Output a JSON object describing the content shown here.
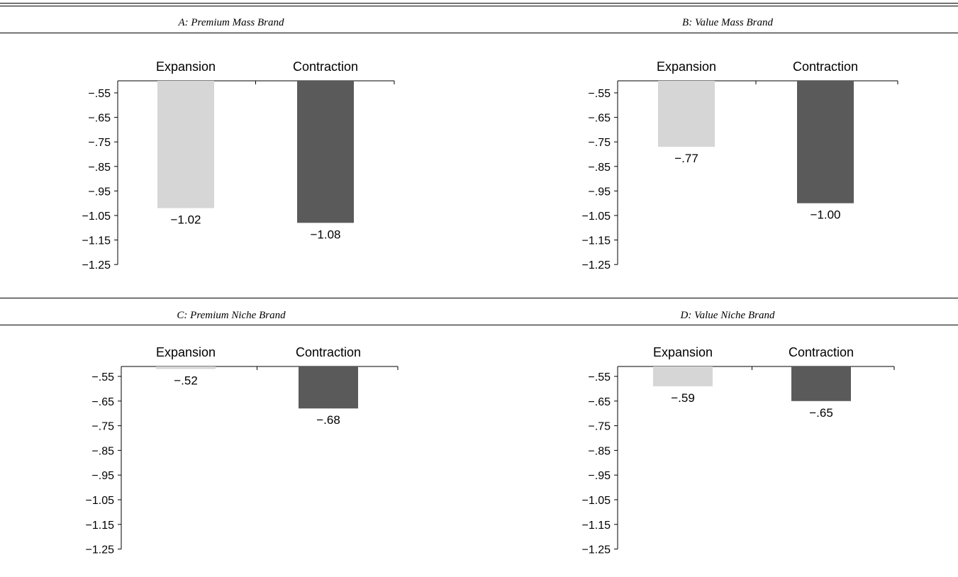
{
  "chart_data": [
    {
      "type": "bar",
      "title": "A: Premium Mass Brand",
      "categories": [
        "Expansion",
        "Contraction"
      ],
      "values": [
        -1.02,
        -1.08
      ],
      "value_labels": [
        "−1.02",
        "−1.08"
      ],
      "colors": [
        "#d6d6d6",
        "#5a5a5a"
      ],
      "yticks": [
        "−.55",
        "−.65",
        "−.75",
        "−.85",
        "−.95",
        "−1.05",
        "−1.15",
        "−1.25"
      ],
      "ylim": [
        -0.52,
        -1.25
      ],
      "category_axis": "top",
      "grid": false
    },
    {
      "type": "bar",
      "title": "B: Value Mass Brand",
      "categories": [
        "Expansion",
        "Contraction"
      ],
      "values": [
        -0.77,
        -1.0
      ],
      "value_labels": [
        "−.77",
        "−1.00"
      ],
      "colors": [
        "#d6d6d6",
        "#5a5a5a"
      ],
      "yticks": [
        "−.55",
        "−.65",
        "−.75",
        "−.85",
        "−.95",
        "−1.05",
        "−1.15",
        "−1.25"
      ],
      "ylim": [
        -0.52,
        -1.25
      ],
      "category_axis": "top",
      "grid": false
    },
    {
      "type": "bar",
      "title": "C: Premium Niche Brand",
      "categories": [
        "Expansion",
        "Contraction"
      ],
      "values": [
        -0.52,
        -0.68
      ],
      "value_labels": [
        "−.52",
        "−.68"
      ],
      "colors": [
        "#d6d6d6",
        "#5a5a5a"
      ],
      "yticks": [
        "−.55",
        "−.65",
        "−.75",
        "−.85",
        "−.95",
        "−1.05",
        "−1.15",
        "−1.25"
      ],
      "ylim": [
        -0.5,
        -1.25
      ],
      "category_axis": "top",
      "grid": false
    },
    {
      "type": "bar",
      "title": "D: Value Niche Brand",
      "categories": [
        "Expansion",
        "Contraction"
      ],
      "values": [
        -0.59,
        -0.65
      ],
      "value_labels": [
        "−.59",
        "−.65"
      ],
      "colors": [
        "#d6d6d6",
        "#5a5a5a"
      ],
      "yticks": [
        "−.55",
        "−.65",
        "−.75",
        "−.85",
        "−.95",
        "−1.05",
        "−1.15",
        "−1.25"
      ],
      "ylim": [
        -0.5,
        -1.25
      ],
      "category_axis": "top",
      "grid": false
    }
  ]
}
